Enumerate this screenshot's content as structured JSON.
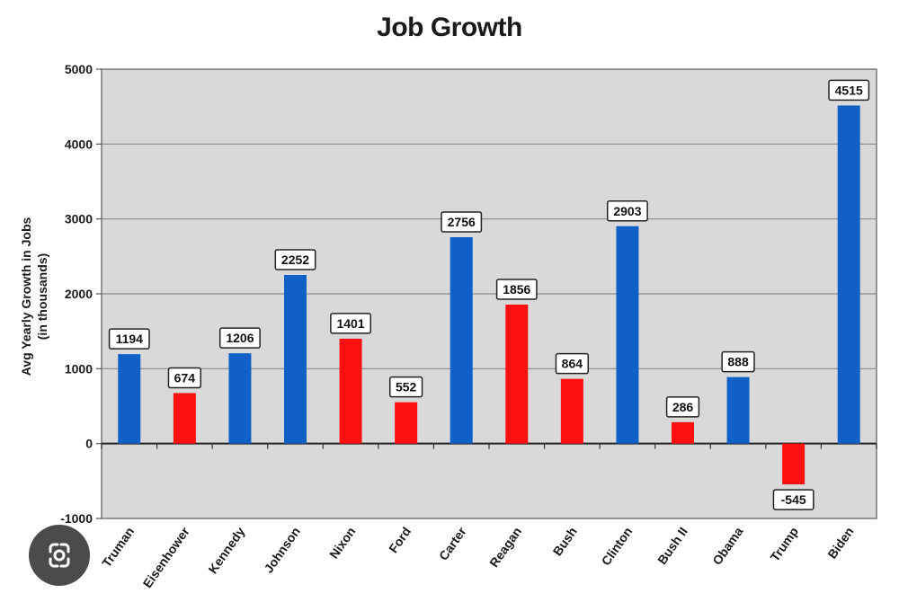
{
  "chart_data": {
    "type": "bar",
    "title": "Job Growth",
    "ylabel_line1": "Avg Yearly Growth in Jobs",
    "ylabel_line2": "(in thousands)",
    "xlabel": "",
    "ylim": [
      -1000,
      5000
    ],
    "yticks": [
      -1000,
      0,
      1000,
      2000,
      3000,
      4000,
      5000
    ],
    "grid": true,
    "categories": [
      "Truman",
      "Eisenhower",
      "Kennedy",
      "Johnson",
      "Nixon",
      "Ford",
      "Carter",
      "Reagan",
      "Bush",
      "Clinton",
      "Bush II",
      "Obama",
      "Trump",
      "Biden"
    ],
    "values": [
      1194,
      674,
      1206,
      2252,
      1401,
      552,
      2756,
      1856,
      864,
      2903,
      286,
      888,
      -545,
      4515
    ],
    "party_colors": [
      "#1060c8",
      "#ff1010",
      "#1060c8",
      "#1060c8",
      "#ff1010",
      "#ff1010",
      "#1060c8",
      "#ff1010",
      "#ff1010",
      "#1060c8",
      "#ff1010",
      "#1060c8",
      "#ff1010",
      "#1060c8"
    ],
    "plot_background": "#d9d9d9"
  },
  "overlay": {
    "icon": "google-lens-icon"
  }
}
